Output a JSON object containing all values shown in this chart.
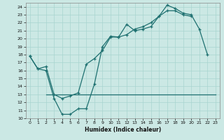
{
  "xlabel": "Humidex (Indice chaleur)",
  "bg_color": "#cbe8e4",
  "grid_color": "#a8d4cf",
  "line_color": "#1e7070",
  "xlim": [
    -0.5,
    23.5
  ],
  "ylim": [
    10,
    24.5
  ],
  "yticks": [
    10,
    11,
    12,
    13,
    14,
    15,
    16,
    17,
    18,
    19,
    20,
    21,
    22,
    23,
    24
  ],
  "xticks": [
    0,
    1,
    2,
    3,
    4,
    5,
    6,
    7,
    8,
    9,
    10,
    11,
    12,
    13,
    14,
    15,
    16,
    17,
    18,
    19,
    20,
    21,
    22,
    23
  ],
  "line1_x": [
    0,
    1,
    2,
    3,
    4,
    5,
    6,
    7,
    8,
    9,
    10,
    11,
    12,
    13,
    14,
    15,
    16,
    17,
    18,
    19,
    20,
    21,
    22
  ],
  "line1_y": [
    17.8,
    16.2,
    16.0,
    12.5,
    10.5,
    10.5,
    11.2,
    11.2,
    14.3,
    19.0,
    20.3,
    20.2,
    21.8,
    21.0,
    21.2,
    21.5,
    22.8,
    24.2,
    23.8,
    23.2,
    23.0,
    21.2,
    18.0
  ],
  "line2_x": [
    0,
    1,
    2,
    3,
    4,
    5,
    6,
    7,
    8,
    9,
    10,
    11,
    12,
    13,
    14,
    15,
    16,
    17,
    18,
    19,
    20
  ],
  "line2_y": [
    17.8,
    16.2,
    16.5,
    13.0,
    12.5,
    12.8,
    13.2,
    16.8,
    17.5,
    18.5,
    20.2,
    20.2,
    20.5,
    21.2,
    21.5,
    22.0,
    22.8,
    23.5,
    23.5,
    23.0,
    22.8
  ],
  "line3_x": [
    2,
    3,
    4,
    5,
    6,
    7,
    8,
    9,
    10,
    11,
    12,
    13,
    14,
    15,
    16,
    17,
    18,
    19,
    20,
    21,
    22,
    23
  ],
  "line3_y": [
    13.0,
    13.0,
    13.0,
    13.0,
    13.0,
    13.0,
    13.0,
    13.0,
    13.0,
    13.0,
    13.0,
    13.0,
    13.0,
    13.0,
    13.0,
    13.0,
    13.0,
    13.0,
    13.0,
    13.0,
    13.0,
    13.0
  ]
}
